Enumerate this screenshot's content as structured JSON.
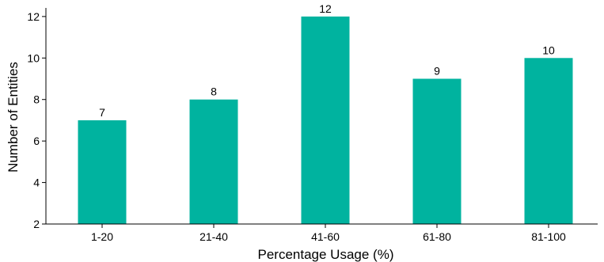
{
  "chart_data": {
    "type": "bar",
    "categories": [
      "1-20",
      "21-40",
      "41-60",
      "61-80",
      "81-100"
    ],
    "values": [
      7,
      8,
      12,
      9,
      10
    ],
    "xlabel": "Percentage Usage (%)",
    "ylabel": "Number of Entities",
    "ylim": [
      2,
      12.3
    ],
    "yticks": [
      2,
      4,
      6,
      8,
      10,
      12
    ],
    "grid": false,
    "bar_color": "#00b39f"
  }
}
